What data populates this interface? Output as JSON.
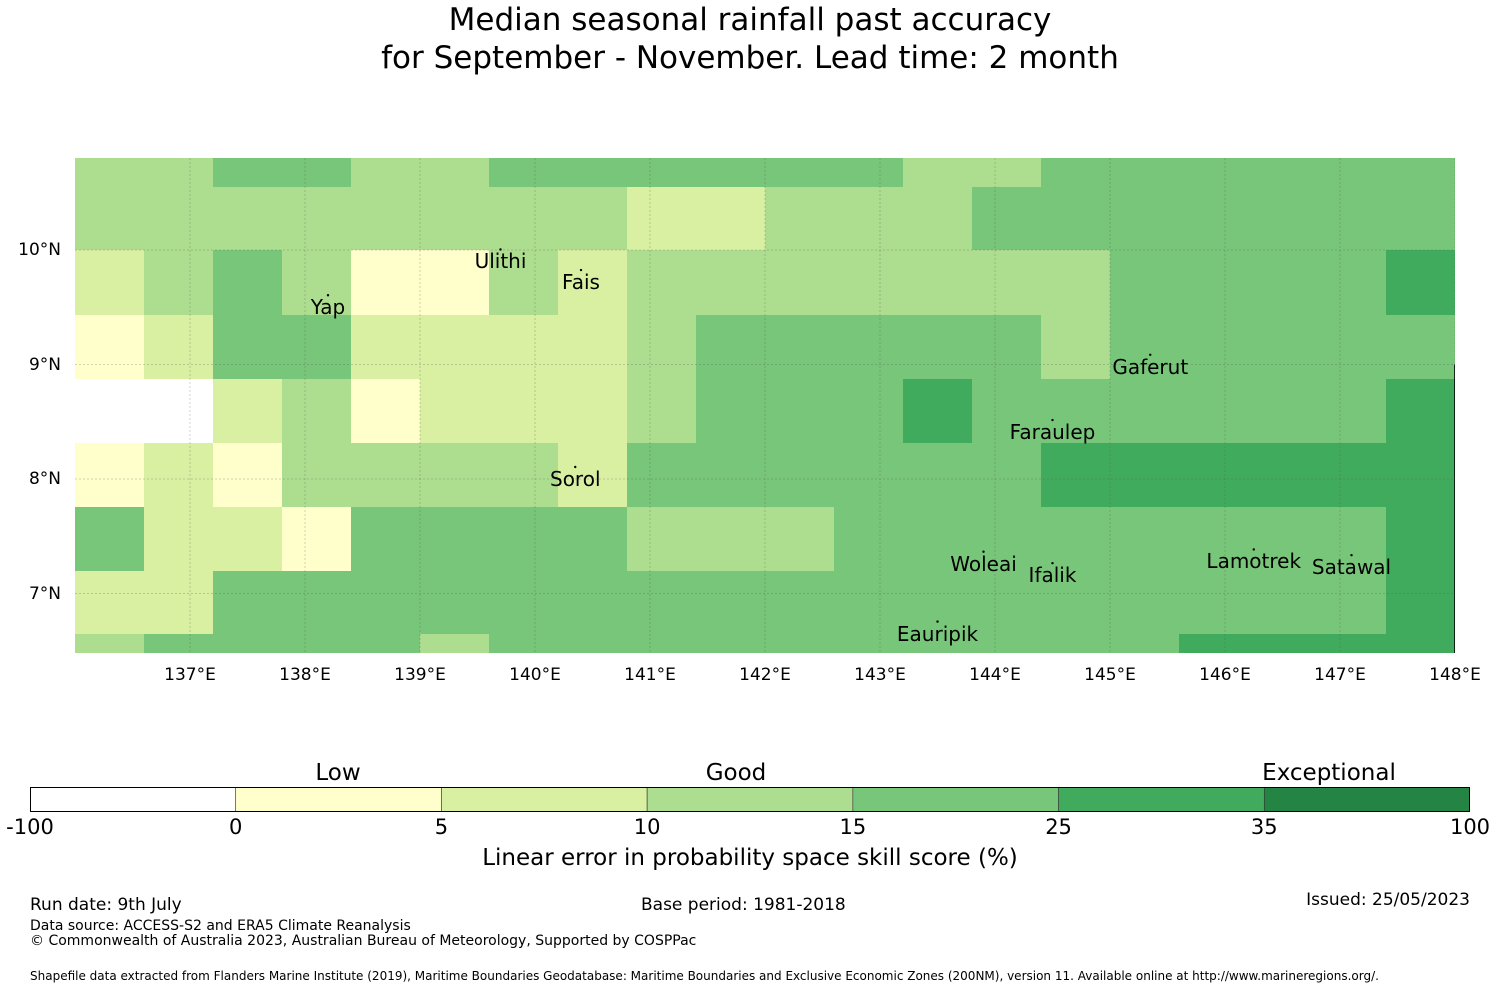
{
  "title": {
    "line1": "Median seasonal rainfall past accuracy",
    "line2": "for September - November. Lead time: 2 month"
  },
  "map": {
    "lon_ticks": [
      "137°E",
      "138°E",
      "139°E",
      "140°E",
      "141°E",
      "142°E",
      "143°E",
      "144°E",
      "145°E",
      "146°E",
      "147°E",
      "148°E"
    ],
    "lat_ticks": [
      "10°N",
      "9°N",
      "8°N",
      "7°N"
    ],
    "extent": {
      "lon_min": 136.0,
      "lon_max": 148.0,
      "lat_min": 6.5,
      "lat_max": 10.8
    },
    "grid_cell_scores_pct": [
      [
        12,
        12,
        18,
        18,
        12,
        12,
        18,
        18,
        18,
        18,
        18,
        18,
        12,
        12,
        18,
        18,
        18,
        18,
        18,
        18
      ],
      [
        12,
        12,
        12,
        12,
        12,
        12,
        12,
        12,
        8,
        8,
        12,
        12,
        12,
        18,
        18,
        18,
        18,
        18,
        18,
        18
      ],
      [
        8,
        12,
        18,
        12,
        3,
        3,
        12,
        8,
        12,
        12,
        12,
        12,
        12,
        12,
        12,
        18,
        18,
        18,
        18,
        30
      ],
      [
        3,
        8,
        18,
        18,
        8,
        8,
        8,
        8,
        12,
        18,
        18,
        18,
        18,
        18,
        12,
        18,
        18,
        18,
        18,
        18
      ],
      [
        -50,
        -50,
        8,
        12,
        3,
        8,
        8,
        8,
        12,
        18,
        18,
        18,
        30,
        18,
        18,
        18,
        18,
        18,
        18,
        30
      ],
      [
        3,
        8,
        3,
        12,
        12,
        12,
        12,
        8,
        18,
        18,
        18,
        18,
        18,
        18,
        30,
        30,
        30,
        30,
        30,
        30
      ],
      [
        18,
        8,
        8,
        3,
        18,
        18,
        18,
        18,
        12,
        12,
        12,
        18,
        18,
        18,
        18,
        18,
        18,
        18,
        18,
        30
      ],
      [
        8,
        8,
        18,
        18,
        18,
        18,
        18,
        18,
        18,
        18,
        18,
        18,
        18,
        18,
        18,
        18,
        18,
        18,
        18,
        30
      ],
      [
        12,
        18,
        18,
        18,
        18,
        12,
        18,
        18,
        18,
        18,
        18,
        18,
        18,
        18,
        18,
        18,
        30,
        30,
        30,
        30
      ]
    ],
    "places": [
      {
        "name": "Ulithi",
        "lon": 139.7,
        "lat": 9.9
      },
      {
        "name": "Yap",
        "lon": 138.2,
        "lat": 9.5
      },
      {
        "name": "Fais",
        "lon": 140.4,
        "lat": 9.72
      },
      {
        "name": "Gaferut",
        "lon": 145.35,
        "lat": 8.98
      },
      {
        "name": "Faraulep",
        "lon": 144.5,
        "lat": 8.41
      },
      {
        "name": "Sorol",
        "lon": 140.35,
        "lat": 8.0
      },
      {
        "name": "Woleai",
        "lon": 143.9,
        "lat": 7.26
      },
      {
        "name": "Ifalik",
        "lon": 144.5,
        "lat": 7.16
      },
      {
        "name": "Lamotrek",
        "lon": 146.25,
        "lat": 7.28
      },
      {
        "name": "Satawal",
        "lon": 147.1,
        "lat": 7.23
      },
      {
        "name": "Eauripik",
        "lon": 143.5,
        "lat": 6.65
      }
    ]
  },
  "legend": {
    "categories": [
      "Low",
      "Good",
      "Exceptional"
    ],
    "ticks": [
      "-100",
      "0",
      "5",
      "10",
      "15",
      "25",
      "35",
      "100"
    ],
    "colors": [
      "#ffffff",
      "#ffffcc",
      "#d9f0a3",
      "#addd8e",
      "#78c679",
      "#41ab5d",
      "#238443"
    ],
    "label": "Linear error in probability space skill score (%)"
  },
  "footer": {
    "run_date": "Run date: 9th July",
    "base_period": "Base period: 1981-2018",
    "issued": "Issued: 25/05/2023",
    "data_source": "Data source: ACCESS-S2 and ERA5 Climate Reanalysis",
    "copyright": "© Commonwealth of Australia 2023, Australian Bureau of Meteorology, Supported by COSPPac",
    "shapefile": "Shapefile data extracted from Flanders Marine Institute (2019), Maritime Boundaries Geodatabase: Maritime Boundaries and Exclusive Economic Zones (200NM), version 11. Available online at http://www.marineregions.org/."
  }
}
